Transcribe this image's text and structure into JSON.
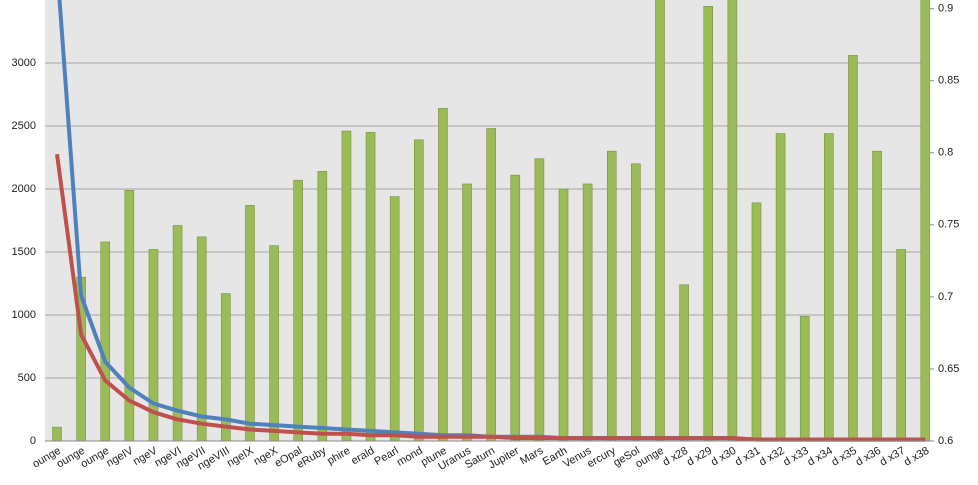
{
  "chart_data": {
    "type": "bar",
    "categories": [
      "ounge",
      "ounge",
      "ounge",
      "ngeIV",
      "ngeV",
      "ngeVI",
      "ngeVII",
      "ngeVIII",
      "ngeIX",
      "ngeX",
      "eOpal",
      "eRuby",
      "phire",
      "erald",
      "Pearl",
      "mond",
      "ptune",
      "Uranus",
      "Saturn",
      "Jupiter",
      "Mars",
      "Earth",
      "Venus",
      "ercury",
      "geSol",
      "ounge",
      "d x28",
      "d x29",
      "d x30",
      "d x31",
      "d x32",
      "d x33",
      "d x34",
      "d x35",
      "d x36",
      "d x37",
      "d x38"
    ],
    "values": [
      110,
      1300,
      1580,
      1990,
      1520,
      1710,
      1620,
      1170,
      1870,
      1550,
      2070,
      2140,
      2460,
      2450,
      1940,
      2390,
      2640,
      2040,
      2480,
      2110,
      2240,
      2000,
      2040,
      2300,
      2200,
      3600,
      1240,
      3450,
      3550,
      1890,
      2440,
      990,
      2440,
      3060,
      2300,
      1520,
      3550
    ],
    "color": "#9bbb59",
    "series": [
      {
        "color": "#4f81bd",
        "axis": "y2",
        "values": [
          0.93,
          0.701,
          0.655,
          0.637,
          0.626,
          0.621,
          0.617,
          0.615,
          0.612,
          0.611,
          0.61,
          0.609,
          0.608,
          0.607,
          0.606,
          0.605,
          0.604,
          0.604,
          0.603,
          0.603,
          0.603,
          0.602,
          0.602,
          0.602,
          0.602,
          0.602,
          0.602,
          0.602,
          0.602,
          0.601,
          0.601,
          0.601,
          0.601,
          0.601,
          0.601,
          0.601,
          0.601
        ]
      },
      {
        "color": "#c0504d",
        "axis": "y2",
        "values": [
          0.799,
          0.674,
          0.642,
          0.628,
          0.62,
          0.615,
          0.612,
          0.61,
          0.608,
          0.607,
          0.606,
          0.605,
          0.605,
          0.604,
          0.604,
          0.603,
          0.603,
          0.603,
          0.603,
          0.602,
          0.602,
          0.602,
          0.602,
          0.602,
          0.602,
          0.602,
          0.602,
          0.602,
          0.602,
          0.601,
          0.601,
          0.601,
          0.601,
          0.601,
          0.601,
          0.601,
          0.601
        ]
      }
    ],
    "ylim": [
      0,
      3500
    ],
    "yticks": [
      0,
      500,
      1000,
      1500,
      2000,
      2500,
      3000
    ],
    "y2lim": [
      0.6,
      0.906
    ],
    "y2ticks": [
      0.6,
      0.65,
      0.7,
      0.75,
      0.8,
      0.85,
      0.9
    ],
    "grid": true
  }
}
